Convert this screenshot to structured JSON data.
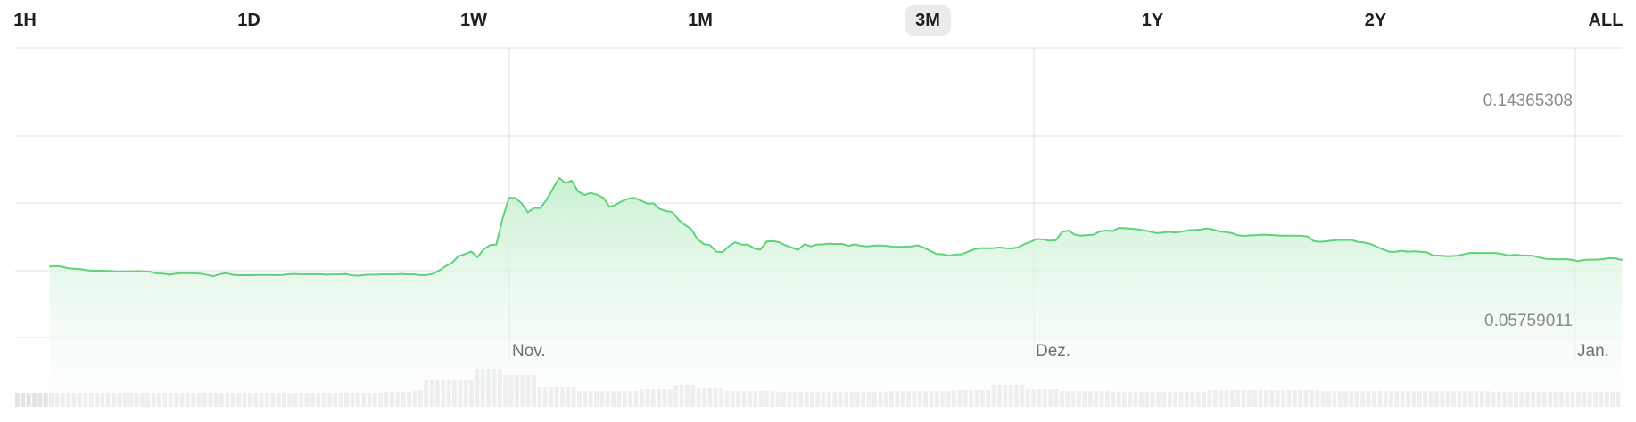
{
  "range_tabs": [
    {
      "label": "1H",
      "active": false
    },
    {
      "label": "1D",
      "active": false
    },
    {
      "label": "1W",
      "active": false
    },
    {
      "label": "1M",
      "active": false
    },
    {
      "label": "3M",
      "active": true
    },
    {
      "label": "1Y",
      "active": false
    },
    {
      "label": "2Y",
      "active": false
    },
    {
      "label": "ALL",
      "active": false
    }
  ],
  "colors": {
    "line": "#5fd27a",
    "fill_top": "#c9f0d2",
    "grid": "#e2e2e2",
    "volume": "#e3e3e3",
    "label": "#6e6e6e",
    "active_tab_bg": "#ebebeb"
  },
  "chart_data": {
    "type": "area",
    "series": [
      {
        "values": [
          0.0785,
          0.0787,
          0.0784,
          0.0778,
          0.0776,
          0.0774,
          0.077,
          0.0768,
          0.0769,
          0.0768,
          0.0767,
          0.0765,
          0.0766,
          0.0766,
          0.0767,
          0.0766,
          0.0764,
          0.0758,
          0.0757,
          0.0753,
          0.0757,
          0.0759,
          0.0759,
          0.0758,
          0.0757,
          0.0752,
          0.0747,
          0.0755,
          0.0759,
          0.0753,
          0.0751,
          0.0751,
          0.0751,
          0.0752,
          0.0752,
          0.0752,
          0.0751,
          0.0752,
          0.0755,
          0.0756,
          0.0754,
          0.0755,
          0.0755,
          0.0755,
          0.0753,
          0.0754,
          0.0754,
          0.0756,
          0.0751,
          0.0749,
          0.0752,
          0.0753,
          0.0753,
          0.0754,
          0.0754,
          0.0754,
          0.0756,
          0.0754,
          0.0754,
          0.0751,
          0.0752,
          0.0757,
          0.0771,
          0.0787,
          0.0801,
          0.0826,
          0.0834,
          0.0844,
          0.0822,
          0.0853,
          0.0869,
          0.0871,
          0.0974,
          0.1055,
          0.1054,
          0.1034,
          0.0998,
          0.1015,
          0.1015,
          0.1047,
          0.1091,
          0.1133,
          0.1113,
          0.1122,
          0.108,
          0.1066,
          0.1074,
          0.1067,
          0.1055,
          0.1019,
          0.1028,
          0.1042,
          0.1052,
          0.1054,
          0.1044,
          0.1032,
          0.1033,
          0.1011,
          0.1003,
          0.0999,
          0.0968,
          0.0948,
          0.0932,
          0.0892,
          0.0873,
          0.0869,
          0.0843,
          0.0842,
          0.0865,
          0.088,
          0.0871,
          0.0871,
          0.0856,
          0.0851,
          0.0883,
          0.0885,
          0.088,
          0.0868,
          0.0859,
          0.0851,
          0.0872,
          0.0864,
          0.0871,
          0.0872,
          0.0875,
          0.0873,
          0.0874,
          0.0866,
          0.0872,
          0.0866,
          0.0864,
          0.0867,
          0.0868,
          0.0866,
          0.0863,
          0.0862,
          0.0863,
          0.0864,
          0.0868,
          0.0859,
          0.0847,
          0.0834,
          0.0833,
          0.0828,
          0.0832,
          0.0833,
          0.0843,
          0.0853,
          0.0857,
          0.0857,
          0.0857,
          0.086,
          0.0857,
          0.0856,
          0.086,
          0.0873,
          0.0882,
          0.0893,
          0.0891,
          0.0886,
          0.0888,
          0.0921,
          0.0926,
          0.091,
          0.0906,
          0.0908,
          0.091,
          0.0923,
          0.0926,
          0.0924,
          0.0936,
          0.0935,
          0.0933,
          0.0931,
          0.0927,
          0.0922,
          0.0916,
          0.0918,
          0.0921,
          0.0918,
          0.0922,
          0.0927,
          0.0928,
          0.093,
          0.0934,
          0.093,
          0.0923,
          0.092,
          0.0916,
          0.0907,
          0.0905,
          0.0907,
          0.0908,
          0.091,
          0.0909,
          0.0907,
          0.0906,
          0.0906,
          0.0906,
          0.0906,
          0.0903,
          0.0885,
          0.0882,
          0.0884,
          0.0887,
          0.0889,
          0.0889,
          0.0889,
          0.0882,
          0.0879,
          0.0874,
          0.0863,
          0.0853,
          0.0843,
          0.0843,
          0.0847,
          0.0843,
          0.0845,
          0.0843,
          0.0841,
          0.0828,
          0.0828,
          0.0826,
          0.0826,
          0.0828,
          0.0834,
          0.0839,
          0.0838,
          0.0838,
          0.0838,
          0.0838,
          0.0834,
          0.0828,
          0.0831,
          0.0829,
          0.0828,
          0.0827,
          0.082,
          0.0815,
          0.0814,
          0.0813,
          0.0814,
          0.0812,
          0.0806,
          0.0811,
          0.0812,
          0.0812,
          0.0814,
          0.0818,
          0.0817,
          0.0811
        ]
      }
    ],
    "x_labels": [
      "Nov.",
      "Dez.",
      "Jan."
    ],
    "y_labels": [
      "0.14365308",
      "0.05759011"
    ],
    "ylim": [
      0.0576,
      0.1437
    ],
    "grid": true,
    "volume": [
      16,
      16,
      16,
      16,
      16,
      16,
      16,
      16,
      16,
      16,
      16,
      16,
      16,
      16,
      16,
      16,
      16,
      16,
      16,
      16,
      16,
      16,
      16,
      16,
      16,
      16,
      16,
      16,
      16,
      16,
      16,
      16,
      16,
      16,
      16,
      16,
      16,
      16,
      16,
      16,
      16,
      16,
      16,
      16,
      16,
      16,
      16,
      16,
      16,
      16,
      16,
      16,
      16,
      16,
      16,
      16,
      16,
      16,
      16,
      16,
      16,
      16,
      16,
      16,
      16,
      17,
      17,
      17,
      17,
      17,
      19,
      19,
      30,
      30,
      30,
      30,
      30,
      30,
      30,
      30,
      30,
      42,
      42,
      42,
      42,
      42,
      36,
      36,
      36,
      36,
      36,
      36,
      22,
      22,
      22,
      22,
      22,
      22,
      22,
      18,
      18,
      18,
      18,
      18,
      18,
      18,
      18,
      18,
      18,
      18,
      20,
      20,
      20,
      20,
      20,
      20,
      25,
      25,
      25,
      25,
      21,
      21,
      21,
      21,
      21,
      18,
      18,
      18,
      18,
      18,
      18,
      18,
      18,
      18,
      17,
      17,
      17,
      17,
      17,
      17,
      17,
      17,
      17,
      17,
      17,
      17,
      17,
      17,
      17,
      17,
      17,
      17,
      17,
      17,
      18,
      18,
      18,
      18,
      18,
      18,
      18,
      18,
      18,
      18,
      18,
      18,
      19,
      19,
      19,
      19,
      19,
      19,
      24,
      24,
      24,
      24,
      24,
      24,
      20,
      20,
      20,
      20,
      20,
      20,
      18,
      18,
      18,
      18,
      18,
      18,
      18,
      18,
      18,
      17,
      17,
      17,
      17,
      17,
      17,
      17,
      17,
      17,
      17,
      17,
      17,
      17,
      17,
      17,
      17,
      17,
      19,
      19,
      19,
      19,
      19,
      19,
      19,
      19,
      19,
      19,
      19,
      19,
      19,
      19,
      19,
      19,
      19,
      19,
      19,
      19,
      18,
      18,
      18,
      18,
      18,
      18,
      18,
      18,
      18,
      18,
      18,
      18,
      18,
      18,
      18,
      18,
      18,
      18,
      18,
      18,
      18,
      18,
      18,
      18,
      18,
      18,
      18,
      18,
      18,
      18,
      17,
      17,
      17,
      17,
      17,
      17,
      17,
      17,
      17,
      17,
      17,
      17,
      17,
      17,
      17,
      17,
      17,
      17,
      17,
      17,
      17,
      17,
      17
    ]
  }
}
